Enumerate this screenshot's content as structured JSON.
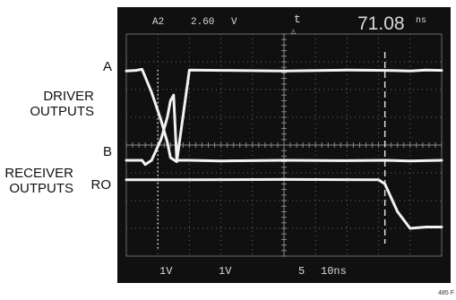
{
  "labels": {
    "a": "A",
    "driver_outputs": [
      "DRIVER",
      "OUTPUTS"
    ],
    "b": "B",
    "receiver_outputs": [
      "RECEIVER",
      "OUTPUTS"
    ],
    "ro": "RO"
  },
  "figure_id": "485 F",
  "chart_data": {
    "type": "line",
    "title": "",
    "xlabel": "",
    "ylabel": "",
    "xlim": [
      0,
      100
    ],
    "x_unit": "ns",
    "ylim": [
      -4,
      4
    ],
    "y_unit": "div",
    "grid": "on",
    "background": "#101010",
    "trace_color": "#f2f2f2",
    "header_readout": {
      "channel": "A2",
      "trigger_level": "2.60",
      "trigger_unit": "V",
      "delta_symbol": "t",
      "delta_value": "71.08",
      "delta_unit": "ns"
    },
    "footer_readout": {
      "ch1": "1V",
      "ch2": "1V",
      "math": "5",
      "timebase": "10ns"
    },
    "dotted_cursor_x": 10,
    "dashed_cursor_x": 82,
    "series": [
      {
        "label_ref": "labels.a",
        "x": [
          0,
          3,
          5,
          8,
          11,
          13,
          14,
          16,
          20,
          30,
          50,
          70,
          82,
          86,
          90,
          95,
          100
        ],
        "y": [
          2.67,
          2.69,
          2.73,
          1.9,
          0.9,
          0.1,
          -0.45,
          -0.6,
          2.7,
          2.69,
          2.67,
          2.7,
          2.69,
          2.68,
          2.67,
          2.7,
          2.69
        ]
      },
      {
        "label_ref": "labels.b",
        "x": [
          0,
          5,
          6,
          8,
          11,
          13,
          14,
          15,
          16,
          20,
          30,
          50,
          70,
          82,
          90,
          100
        ],
        "y": [
          -0.55,
          -0.55,
          -0.7,
          -0.55,
          0.2,
          1.0,
          1.6,
          1.8,
          -0.55,
          -0.55,
          -0.57,
          -0.55,
          -0.56,
          -0.55,
          -0.57,
          -0.55
        ]
      },
      {
        "label_ref": "labels.ro",
        "x": [
          0,
          20,
          50,
          80,
          82,
          86,
          90,
          95,
          100
        ],
        "y": [
          -1.25,
          -1.25,
          -1.24,
          -1.25,
          -1.4,
          -2.4,
          -3.0,
          -2.95,
          -2.95
        ]
      }
    ]
  }
}
